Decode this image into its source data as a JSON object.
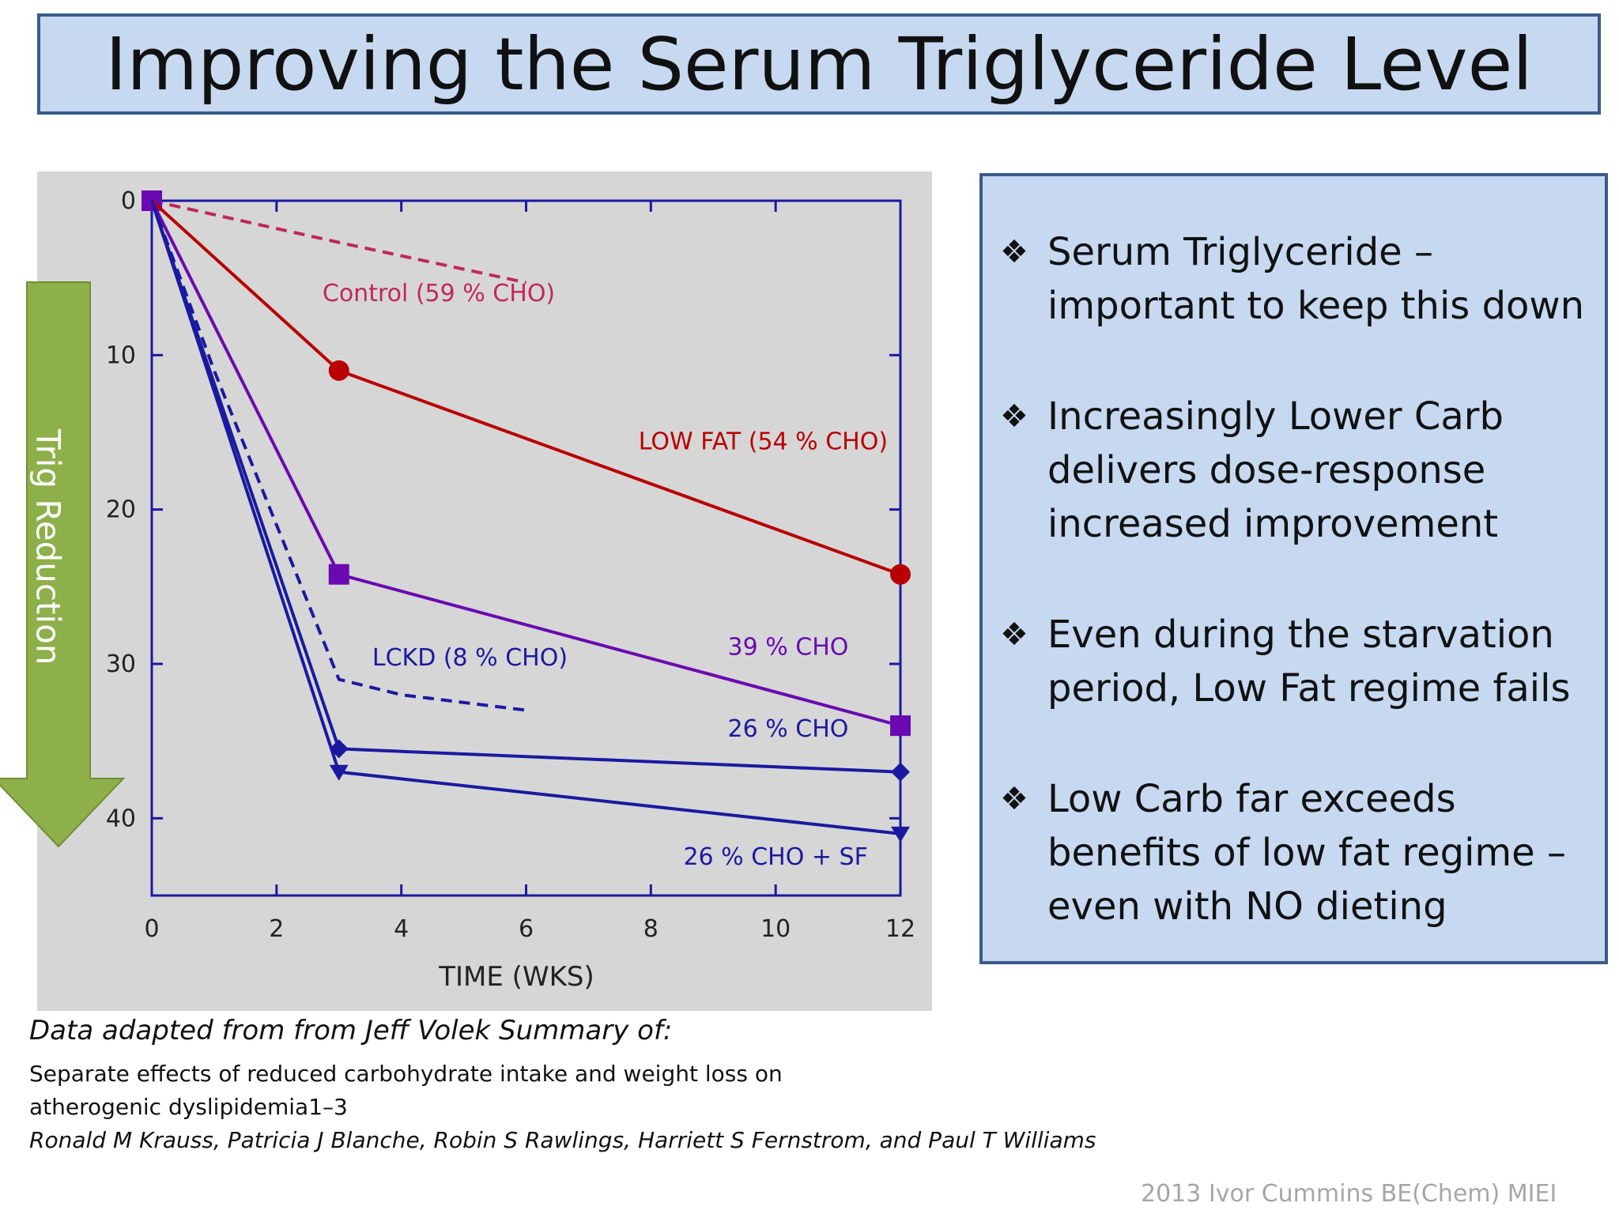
{
  "slide": {
    "title": "Improving the Serum Triglyceride Level",
    "arrow_label": "Trig Reduction",
    "bullets": [
      {
        "mark": "❖",
        "text": "Serum Triglyceride – important to keep this down"
      },
      {
        "mark": "❖",
        "text": "Increasingly Lower Carb delivers dose-response increased improvement"
      },
      {
        "mark": "❖",
        "text": "Even during the starvation period, Low Fat regime fails"
      },
      {
        "mark": "❖",
        "text": "Low Carb far exceeds benefits of low fat regime – even with NO dieting"
      }
    ],
    "source_lead": "Data adapted from from Jeff Volek Summary of:",
    "source_line1": "Separate effects of reduced carbohydrate intake and weight loss on",
    "source_line2": "atherogenic dyslipidemia1–3",
    "source_authors": "Ronald M Krauss, Patricia J Blanche, Robin S Rawlings, Harriett S Fernstrom, and Paul T Williams",
    "credit": "2013 Ivor Cummins BE(Chem) MIEI"
  },
  "colors": {
    "title_bg": "#c6d9f1",
    "panel_border": "#3b5a8c",
    "chart_bg": "#d6d6d6",
    "axis": "#1a1aa0",
    "control": "#c0285a",
    "low_fat": "#b80000",
    "purple": "#6a0ab0",
    "blue": "#1a1aa0",
    "arrow_fill": "#8db04a"
  },
  "chart_data": {
    "type": "line",
    "xlabel": "TIME (WKS)",
    "ylabel": "",
    "xlim": [
      0,
      12
    ],
    "ylim": [
      0,
      45
    ],
    "y_inverted": true,
    "x_ticks": [
      0,
      2,
      4,
      6,
      8,
      10,
      12
    ],
    "y_ticks": [
      0,
      10,
      20,
      30,
      40
    ],
    "grid": false,
    "series": [
      {
        "name": "Control (59 % CHO)",
        "style": "dashed",
        "color": "#c0285a",
        "marker": "square",
        "x": [
          0,
          3,
          6
        ],
        "y": [
          0,
          2.7,
          5.3
        ]
      },
      {
        "name": "LOW FAT (54 % CHO)",
        "style": "solid",
        "color": "#b80000",
        "marker": "circle",
        "x": [
          0,
          3,
          12
        ],
        "y": [
          0,
          11,
          24.2
        ]
      },
      {
        "name": "39 % CHO",
        "style": "solid",
        "color": "#6a0ab0",
        "marker": "square",
        "x": [
          0,
          3,
          12
        ],
        "y": [
          0,
          24.2,
          34
        ]
      },
      {
        "name": "LCKD (8 % CHO)",
        "style": "dashed",
        "color": "#1a1aa0",
        "marker": "none",
        "x": [
          0,
          1,
          3,
          4,
          6
        ],
        "y": [
          0,
          11,
          31,
          32,
          33
        ]
      },
      {
        "name": "26 % CHO",
        "style": "solid",
        "color": "#1a1aa0",
        "marker": "diamond",
        "x": [
          0,
          3,
          12
        ],
        "y": [
          0,
          35.5,
          37
        ]
      },
      {
        "name": "26 % CHO + SF",
        "style": "solid",
        "color": "#1a1aa0",
        "marker": "triangle-down",
        "x": [
          0,
          3,
          12
        ],
        "y": [
          0,
          37,
          41
        ]
      }
    ],
    "annotations": [
      {
        "text": "Control (59 % CHO)",
        "x": 4.6,
        "y": 6.5,
        "color": "#c0285a"
      },
      {
        "text": "LOW FAT (54 % CHO)",
        "x": 9.8,
        "y": 16.1,
        "color": "#b80000"
      },
      {
        "text": "39 % CHO",
        "x": 10.2,
        "y": 29.4,
        "color": "#6a0ab0"
      },
      {
        "text": "LCKD (8 % CHO)",
        "x": 5.1,
        "y": 30.1,
        "color": "#1a1aa0"
      },
      {
        "text": "26 % CHO",
        "x": 10.2,
        "y": 34.7,
        "color": "#1a1aa0"
      },
      {
        "text": "26 % CHO + SF",
        "x": 10.0,
        "y": 43.0,
        "color": "#1a1aa0"
      }
    ]
  }
}
